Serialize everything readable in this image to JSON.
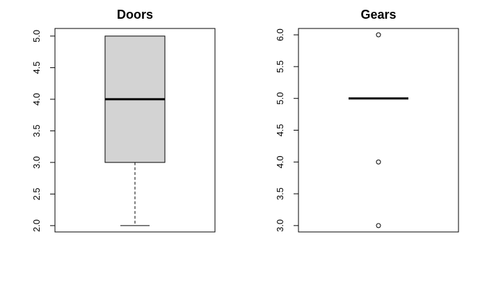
{
  "chart_data": [
    {
      "type": "box",
      "title": "Doors",
      "xlabel": "",
      "ylabel": "",
      "ylim": [
        1.9,
        5.12
      ],
      "yticks": [
        "2.0",
        "2.5",
        "3.0",
        "3.5",
        "4.0",
        "4.5",
        "5.0"
      ],
      "grid": false,
      "box_fill": "#d3d3d3",
      "stats": {
        "min": 2.0,
        "q1": 3.0,
        "median": 4.0,
        "q3": 5.0,
        "max": 5.0
      },
      "outliers": []
    },
    {
      "type": "box",
      "title": "Gears",
      "xlabel": "",
      "ylabel": "",
      "ylim": [
        2.9,
        6.1
      ],
      "yticks": [
        "3.0",
        "3.5",
        "4.0",
        "4.5",
        "5.0",
        "5.5",
        "6.0"
      ],
      "grid": false,
      "box_fill": "#d3d3d3",
      "stats": {
        "min": 5.0,
        "q1": 5.0,
        "median": 5.0,
        "q3": 5.0,
        "max": 5.0
      },
      "outliers": [
        6.0,
        4.0,
        3.0
      ]
    }
  ]
}
